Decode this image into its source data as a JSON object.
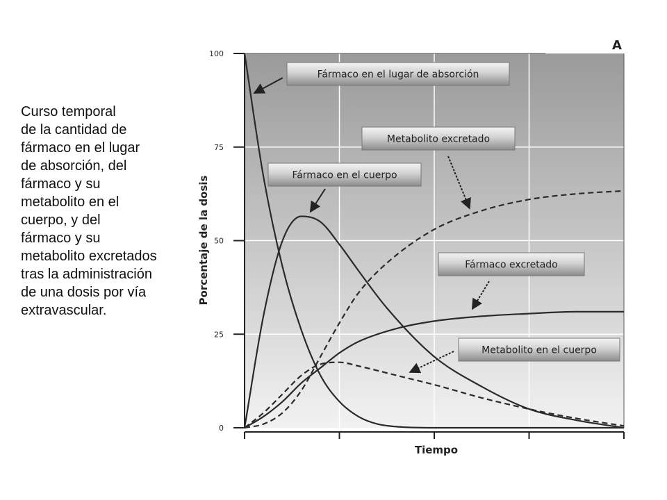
{
  "caption": {
    "lines": [
      "Curso temporal",
      "de la cantidad de",
      "fármaco en el lugar",
      "de absorción, del",
      "fármaco y su",
      "metabolito en el",
      "cuerpo, y del",
      "fármaco y su",
      "metabolito excretados",
      "tras la administración",
      "de una dosis por vía",
      "extravascular."
    ]
  },
  "chart_data": {
    "type": "line",
    "panel_label": "A",
    "xlabel": "Tiempo",
    "ylabel": "Porcentaje de la dosis",
    "ylim": [
      0,
      100
    ],
    "yticks": [
      "0",
      "25",
      "50",
      "75",
      "100"
    ],
    "xlim": [
      0,
      4
    ],
    "grid": true,
    "colors": {
      "background_top": "#9a9a9a",
      "background_bottom": "#f2f2f2",
      "line": "#2a2a2a",
      "grid": "#ffffff"
    },
    "series": [
      {
        "name": "Fármaco en el lugar de absorción",
        "style": "solid",
        "x": [
          0,
          0.2,
          0.4,
          0.6,
          0.8,
          1.0,
          1.2,
          1.4,
          1.6,
          2.0,
          4.0
        ],
        "y": [
          100,
          67,
          43,
          26,
          14,
          7,
          3,
          1,
          0.3,
          0,
          0
        ]
      },
      {
        "name": "Fármaco en el cuerpo",
        "style": "solid",
        "x": [
          0,
          0.2,
          0.4,
          0.6,
          0.8,
          1.0,
          1.2,
          1.5,
          2.0,
          2.5,
          3.0,
          3.5,
          4.0
        ],
        "y": [
          0,
          30,
          50,
          56.5,
          55,
          49,
          42,
          32,
          19,
          11,
          5,
          2,
          0
        ]
      },
      {
        "name": "Metabolito en el cuerpo",
        "style": "dashed",
        "x": [
          0,
          0.2,
          0.4,
          0.6,
          0.8,
          1.0,
          1.2,
          1.6,
          2.0,
          2.5,
          3.0,
          3.5,
          4.0
        ],
        "y": [
          0,
          4,
          9,
          14,
          17,
          17.5,
          16.5,
          14,
          11.5,
          8,
          5,
          2.5,
          0.5
        ]
      },
      {
        "name": "Fármaco excretado",
        "style": "solid",
        "x": [
          0,
          0.2,
          0.4,
          0.6,
          0.8,
          1.0,
          1.2,
          1.6,
          2.0,
          2.5,
          3.0,
          3.5,
          4.0
        ],
        "y": [
          0,
          3,
          7,
          12,
          16,
          20,
          23,
          26.5,
          28.5,
          29.8,
          30.5,
          31,
          31
        ]
      },
      {
        "name": "Metabolito excretado",
        "style": "dashed",
        "x": [
          0,
          0.2,
          0.4,
          0.6,
          0.8,
          1.0,
          1.2,
          1.5,
          2.0,
          2.5,
          3.0,
          3.5,
          4.0
        ],
        "y": [
          0,
          1,
          4,
          10,
          19,
          28,
          36,
          44,
          53,
          58,
          61,
          62.5,
          63.3
        ]
      }
    ],
    "annotations": [
      "Fármaco en el lugar de absorción",
      "Metabolito excretado",
      "Fármaco en el cuerpo",
      "Fármaco excretado",
      "Metabolito en el cuerpo"
    ]
  }
}
